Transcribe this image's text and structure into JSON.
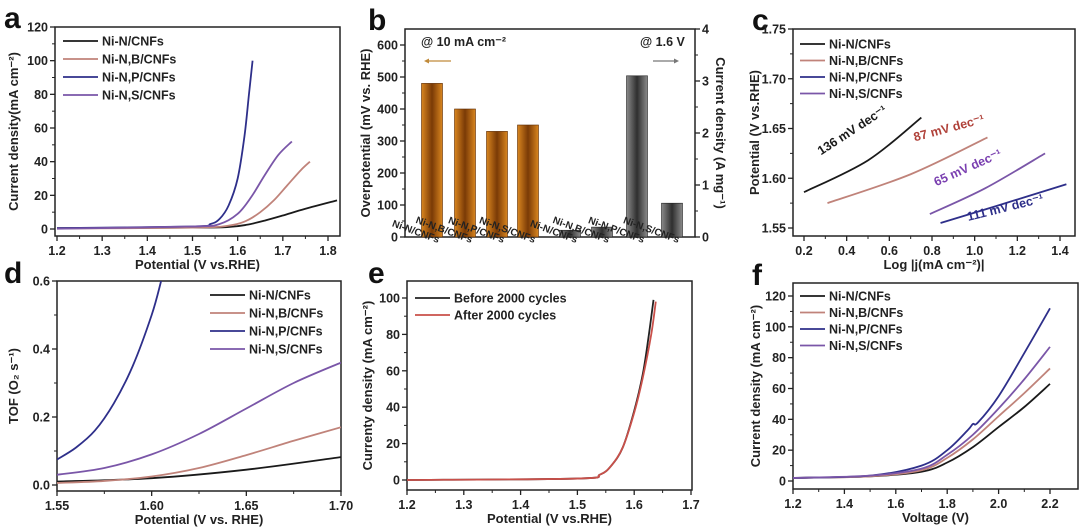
{
  "colors": {
    "Ni-N/CNFs": "#1a1a1a",
    "Ni-N,B/CNFs": "#c0837a",
    "Ni-N,P/CNFs": "#2e2f8a",
    "Ni-N,S/CNFs": "#7a56a8",
    "orange": "#c86f12",
    "gray": "#555555",
    "after": "#c9504a"
  },
  "chart_data": [
    {
      "panel": "a",
      "type": "line",
      "xlabel": "Potential (V vs.RHE)",
      "ylabel": "Current density(mA cm⁻²)",
      "xlim": [
        1.2,
        1.84
      ],
      "ylim": [
        -5,
        120
      ],
      "xticks": [
        1.2,
        1.3,
        1.4,
        1.5,
        1.6,
        1.7,
        1.8
      ],
      "yticks": [
        0,
        20,
        40,
        60,
        80,
        100,
        120
      ],
      "legend": "top-left",
      "series": [
        {
          "name": "Ni-N/CNFs",
          "x": [
            1.2,
            1.5,
            1.58,
            1.62,
            1.66,
            1.7,
            1.75,
            1.82
          ],
          "y": [
            0.5,
            0.8,
            1.2,
            2.5,
            5,
            8,
            12,
            17
          ]
        },
        {
          "name": "Ni-N,B/CNFs",
          "x": [
            1.2,
            1.5,
            1.58,
            1.62,
            1.65,
            1.68,
            1.71,
            1.74,
            1.76
          ],
          "y": [
            0.3,
            0.8,
            2,
            5,
            10,
            17,
            26,
            35,
            40
          ]
        },
        {
          "name": "Ni-N,P/CNFs",
          "x": [
            1.2,
            1.5,
            1.54,
            1.56,
            1.58,
            1.6,
            1.615,
            1.625,
            1.633
          ],
          "y": [
            0.5,
            1.5,
            3,
            6,
            14,
            30,
            55,
            80,
            100
          ]
        },
        {
          "name": "Ni-N,S/CNFs",
          "x": [
            1.2,
            1.5,
            1.56,
            1.6,
            1.63,
            1.66,
            1.69,
            1.72
          ],
          "y": [
            0.2,
            1.5,
            3,
            9,
            19,
            32,
            44,
            52
          ]
        }
      ]
    },
    {
      "panel": "b",
      "type": "bar",
      "categories": [
        "Ni-N/CNFs",
        "Ni-N,B/CNFs",
        "Ni-N,P/CNFs",
        "Ni-N,S/CNFs"
      ],
      "series": [
        {
          "name": "Overpotential @ 10 mA cm⁻²",
          "axis": "left",
          "values": [
            480,
            400,
            330,
            350
          ]
        },
        {
          "name": "Current density @ 1.6 V",
          "axis": "right",
          "values": [
            0.13,
            0.19,
            3.1,
            0.65
          ]
        }
      ],
      "ylabel": "Overpotential (mV vs. RHE)",
      "ylim": [
        0,
        650
      ],
      "yticks": [
        0,
        100,
        200,
        300,
        400,
        500,
        600
      ],
      "y2label": "Current density (A mg⁻¹)",
      "y2lim": [
        0,
        4
      ],
      "y2ticks": [
        0,
        1,
        2,
        3,
        4
      ],
      "annotations": [
        "@ 10 mA cm⁻²",
        "@ 1.6 V"
      ]
    },
    {
      "panel": "c",
      "type": "line",
      "xlabel": "Log |j(mA cm⁻²)|",
      "ylabel": "Potential (V vs.RHE)",
      "xlim": [
        0.15,
        1.5
      ],
      "ylim": [
        1.54,
        1.75
      ],
      "xticks": [
        0.2,
        0.4,
        0.6,
        0.8,
        1.0,
        1.2,
        1.4
      ],
      "yticks": [
        1.55,
        1.6,
        1.65,
        1.7,
        1.75
      ],
      "legend": "top-left",
      "series": [
        {
          "name": "Ni-N/CNFs",
          "x": [
            0.2,
            0.5,
            0.75
          ],
          "y": [
            1.586,
            1.618,
            1.661
          ],
          "label": "136 mV dec⁻¹"
        },
        {
          "name": "Ni-N,B/CNFs",
          "x": [
            0.31,
            0.7,
            1.06
          ],
          "y": [
            1.575,
            1.604,
            1.641
          ],
          "label": "87 mV dec⁻¹"
        },
        {
          "name": "Ni-N,P/CNFs",
          "x": [
            0.84,
            1.1,
            1.43
          ],
          "y": [
            1.555,
            1.572,
            1.594
          ],
          "label": "65 mV dec⁻¹"
        },
        {
          "name": "Ni-N,S/CNFs",
          "x": [
            0.79,
            1.05,
            1.33
          ],
          "y": [
            1.564,
            1.59,
            1.625
          ],
          "label": "111 mV dec⁻¹"
        }
      ]
    },
    {
      "panel": "d",
      "type": "line",
      "xlabel": "Potential (V vs. RHE)",
      "ylabel": "TOF (O₂ s⁻¹)",
      "xlim": [
        1.55,
        1.7
      ],
      "ylim": [
        -0.01,
        0.6
      ],
      "xticks": [
        1.55,
        1.6,
        1.65,
        1.7
      ],
      "yticks": [
        0.0,
        0.2,
        0.4,
        0.6
      ],
      "legend": "top-right",
      "series": [
        {
          "name": "Ni-N/CNFs",
          "x": [
            1.55,
            1.6,
            1.65,
            1.7
          ],
          "y": [
            0.01,
            0.02,
            0.045,
            0.082
          ]
        },
        {
          "name": "Ni-N,B/CNFs",
          "x": [
            1.55,
            1.575,
            1.6,
            1.625,
            1.65,
            1.675,
            1.7
          ],
          "y": [
            0.006,
            0.012,
            0.025,
            0.05,
            0.088,
            0.13,
            0.17
          ]
        },
        {
          "name": "Ni-N,P/CNFs",
          "x": [
            1.55,
            1.56,
            1.57,
            1.58,
            1.59,
            1.6,
            1.605
          ],
          "y": [
            0.075,
            0.11,
            0.16,
            0.24,
            0.35,
            0.5,
            0.6
          ]
        },
        {
          "name": "Ni-N,S/CNFs",
          "x": [
            1.55,
            1.575,
            1.6,
            1.625,
            1.65,
            1.675,
            1.7
          ],
          "y": [
            0.03,
            0.05,
            0.09,
            0.15,
            0.225,
            0.3,
            0.36
          ]
        }
      ]
    },
    {
      "panel": "e",
      "type": "line",
      "xlabel": "Potential (V vs.RHE)",
      "ylabel": "Currenty density (mA cm⁻²)",
      "xlim": [
        1.2,
        1.7
      ],
      "ylim": [
        -5,
        110
      ],
      "xticks": [
        1.2,
        1.3,
        1.4,
        1.5,
        1.6,
        1.7
      ],
      "yticks": [
        0,
        20,
        40,
        60,
        80,
        100
      ],
      "legend": "top-left",
      "series": [
        {
          "name": "Before 2000 cycles",
          "x": [
            1.2,
            1.5,
            1.54,
            1.56,
            1.58,
            1.6,
            1.615,
            1.625,
            1.634
          ],
          "y": [
            0,
            0.8,
            3,
            8,
            18,
            38,
            58,
            78,
            99
          ]
        },
        {
          "name": "After 2000 cycles",
          "x": [
            1.2,
            1.5,
            1.54,
            1.56,
            1.58,
            1.6,
            1.615,
            1.63,
            1.638
          ],
          "y": [
            0,
            0.8,
            3,
            8,
            18,
            37,
            56,
            80,
            98
          ]
        }
      ]
    },
    {
      "panel": "f",
      "type": "line",
      "xlabel": "Voltage (V)",
      "ylabel": "Current density (mA cm⁻²)",
      "xlim": [
        1.2,
        2.3
      ],
      "ylim": [
        -5,
        130
      ],
      "xticks": [
        1.2,
        1.4,
        1.6,
        1.8,
        2.0,
        2.2
      ],
      "yticks": [
        0,
        20,
        40,
        60,
        80,
        100,
        120
      ],
      "legend": "top-left",
      "series": [
        {
          "name": "Ni-N/CNFs",
          "x": [
            1.2,
            1.5,
            1.7,
            1.8,
            1.9,
            2.0,
            2.1,
            2.2
          ],
          "y": [
            2,
            3,
            6,
            12,
            22,
            35,
            48,
            63
          ]
        },
        {
          "name": "Ni-N,B/CNFs",
          "x": [
            1.2,
            1.5,
            1.7,
            1.8,
            1.9,
            2.0,
            2.1,
            2.2
          ],
          "y": [
            2,
            3,
            7,
            15,
            27,
            42,
            57,
            73
          ]
        },
        {
          "name": "Ni-N,P/CNFs",
          "x": [
            1.2,
            1.5,
            1.7,
            1.8,
            1.88,
            1.9,
            1.92,
            2.0,
            2.1,
            2.2
          ],
          "y": [
            2,
            3.5,
            10,
            20,
            33,
            37,
            38,
            55,
            83,
            112
          ]
        },
        {
          "name": "Ni-N,S/CNFs",
          "x": [
            1.2,
            1.5,
            1.7,
            1.8,
            1.9,
            2.0,
            2.1,
            2.2
          ],
          "y": [
            2,
            3.5,
            8,
            17,
            30,
            47,
            66,
            87
          ]
        }
      ]
    }
  ]
}
